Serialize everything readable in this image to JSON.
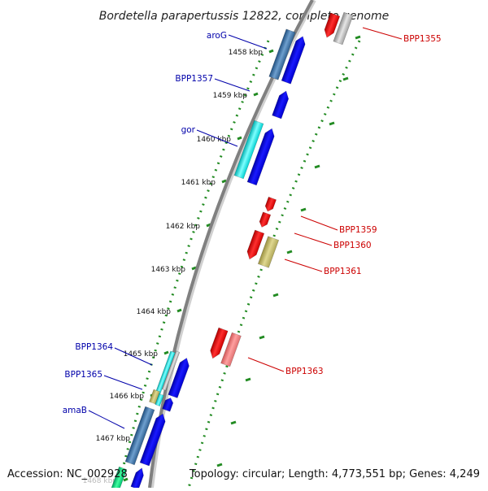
{
  "title": "Bordetella parapertussis 12822, complete genome",
  "accession": "Accession: NC_002928",
  "summary": "Topology: circular; Length: 4,773,551 bp; Genes: 4,249",
  "colors": {
    "forward_gene": "#0000ee",
    "reverse_gene": "#ee0000",
    "blue_label": "#0000aa",
    "red_label": "#cc0000",
    "tick_dots": "#228b22",
    "backbone": "#808080"
  },
  "ticks": [
    {
      "label": "1458 kbp",
      "kbp": 1458
    },
    {
      "label": "1459 kbp",
      "kbp": 1459
    },
    {
      "label": "1460 kbp",
      "kbp": 1460
    },
    {
      "label": "1461 kbp",
      "kbp": 1461
    },
    {
      "label": "1462 kbp",
      "kbp": 1462
    },
    {
      "label": "1463 kbp",
      "kbp": 1463
    },
    {
      "label": "1464 kbp",
      "kbp": 1464
    },
    {
      "label": "1465 kbp",
      "kbp": 1465
    },
    {
      "label": "1466 kbp",
      "kbp": 1466
    },
    {
      "label": "1467 kbp",
      "kbp": 1467
    },
    {
      "label": "1468 kbp",
      "kbp": 1468
    }
  ],
  "gene_labels": [
    {
      "text": "aroG",
      "strand": "forward"
    },
    {
      "text": "BPP1357",
      "strand": "forward"
    },
    {
      "text": "gor",
      "strand": "forward"
    },
    {
      "text": "BPP1364",
      "strand": "forward"
    },
    {
      "text": "BPP1365",
      "strand": "forward"
    },
    {
      "text": "amaB",
      "strand": "forward"
    },
    {
      "text": "BPP1355",
      "strand": "reverse"
    },
    {
      "text": "BPP1359",
      "strand": "reverse"
    },
    {
      "text": "BPP1360",
      "strand": "reverse"
    },
    {
      "text": "BPP1361",
      "strand": "reverse"
    },
    {
      "text": "BPP1363",
      "strand": "reverse"
    }
  ]
}
